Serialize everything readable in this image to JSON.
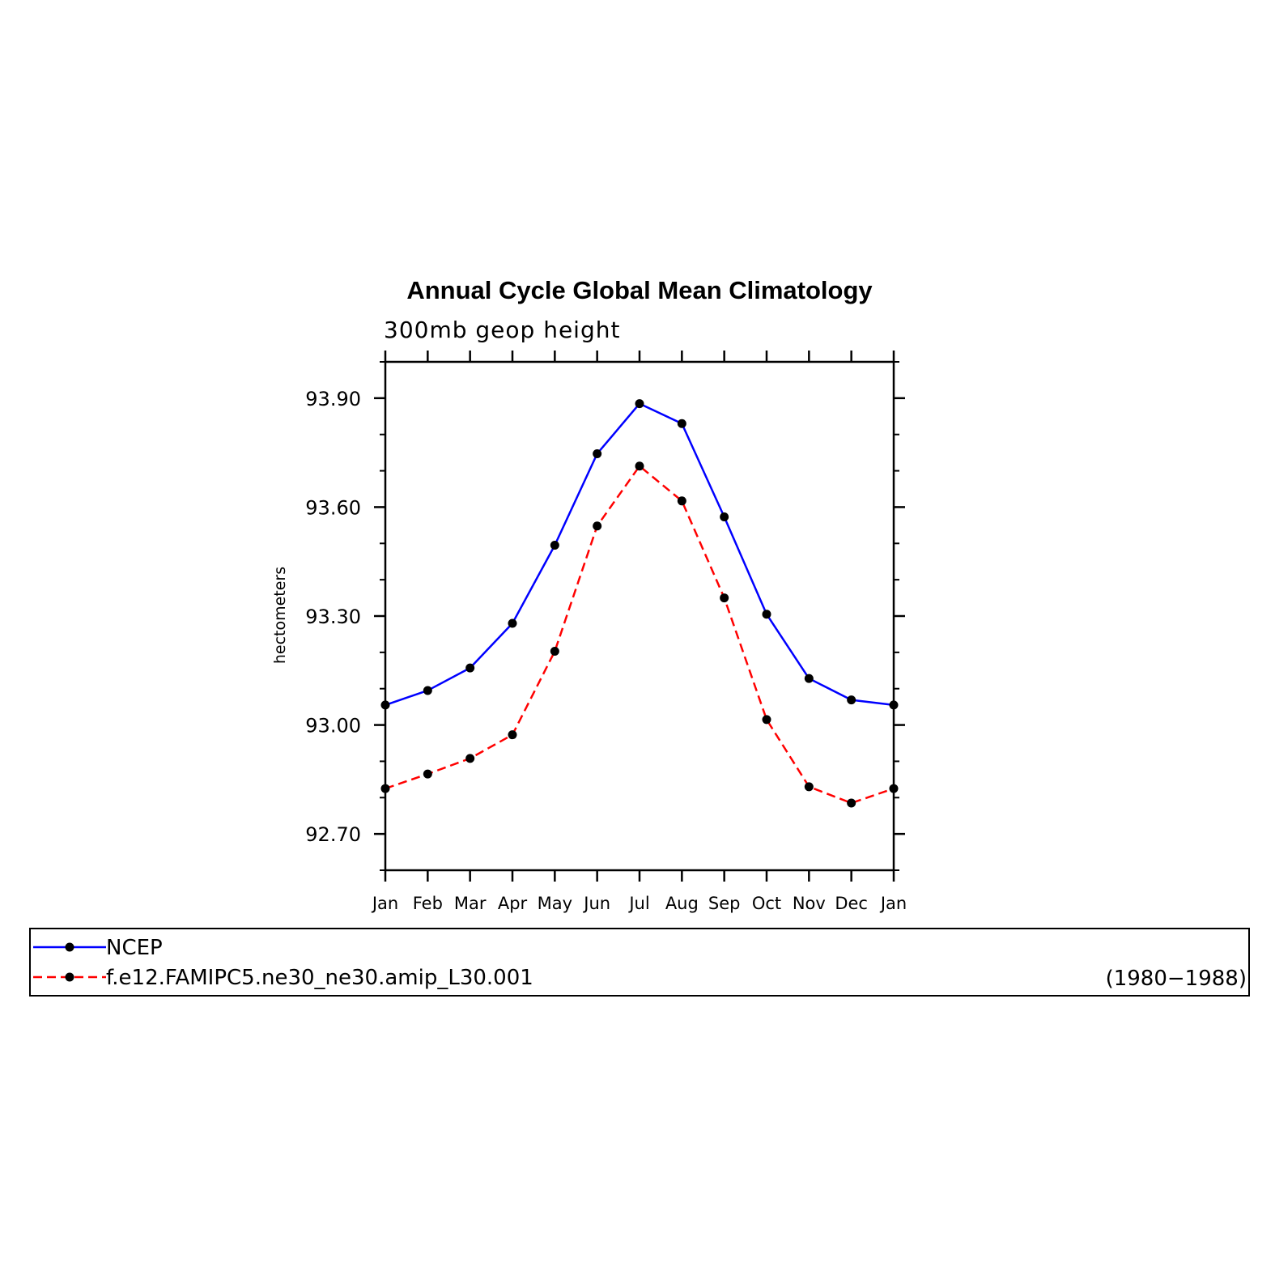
{
  "chart_data": {
    "type": "line",
    "title": "Annual Cycle Global Mean Climatology",
    "subtitle": "300mb geop height",
    "ylabel": "hectometers",
    "xlabel": "",
    "categories": [
      "Jan",
      "Feb",
      "Mar",
      "Apr",
      "May",
      "Jun",
      "Jul",
      "Aug",
      "Sep",
      "Oct",
      "Nov",
      "Dec",
      "Jan"
    ],
    "ylim": [
      92.6,
      94.0
    ],
    "yticks": [
      "92.70",
      "93.00",
      "93.30",
      "93.60",
      "93.90"
    ],
    "grid": false,
    "legend_position": "bottom",
    "legend_note": "(1980−1988)",
    "series": [
      {
        "name": "NCEP",
        "color": "#0000ff",
        "dash": "solid",
        "values": [
          93.055,
          93.095,
          93.157,
          93.28,
          93.495,
          93.747,
          93.885,
          93.83,
          93.573,
          93.305,
          93.128,
          93.069,
          93.055
        ]
      },
      {
        "name": "f.e12.FAMIPC5.ne30_ne30.amip_L30.001",
        "color": "#ff0000",
        "dash": "dashed",
        "values": [
          92.825,
          92.865,
          92.908,
          92.973,
          93.203,
          93.548,
          93.713,
          93.617,
          93.35,
          93.015,
          92.83,
          92.785,
          92.825
        ]
      }
    ]
  }
}
